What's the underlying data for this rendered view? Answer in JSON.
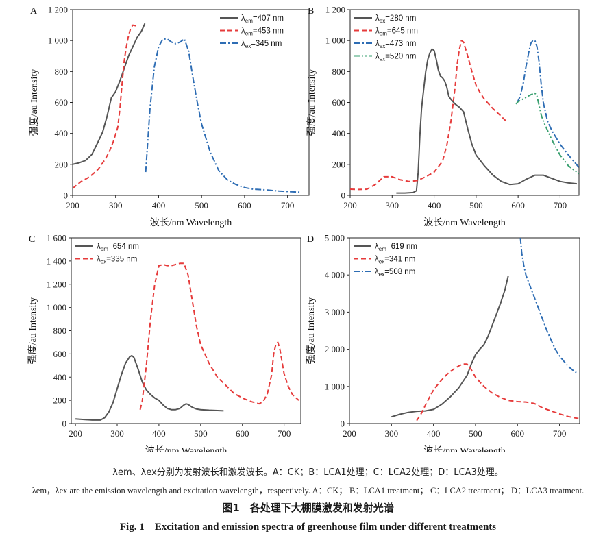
{
  "figure": {
    "title_zh": "图1　各处理下大棚膜激发和发射光谱",
    "title_en": "Fig. 1　Excitation and emission spectra of greenhouse film under different treatments",
    "note_zh": "λem、λex分别为发射波长和激发波长。A：CK；B：LCA1处理；C：LCA2处理；D：LCA3处理。",
    "note_en": "λem，λex are the emission wavelength and excitation wavelength，respectively. A：CK； B：LCA1 treatment； C：LCA2 treatment； D：LCA3 treatment."
  },
  "colors": {
    "gray": "#555555",
    "red": "#e63b3b",
    "blue": "#2e6db4",
    "green": "#3aa070"
  },
  "chart_data": [
    {
      "panel": "A",
      "type": "line",
      "xlabel": "波长/nm Wavelength",
      "ylabel": "强度/au Intensity",
      "xlim": [
        200,
        750
      ],
      "ylim": [
        0,
        1200
      ],
      "xticks": [
        200,
        300,
        400,
        500,
        600,
        700
      ],
      "yticks": [
        0,
        200,
        400,
        600,
        800,
        1000,
        1200
      ],
      "ytick_labels": [
        "0",
        "200",
        "400",
        "600",
        "800",
        "1 000",
        "1 200"
      ],
      "legend_position": "top-right",
      "series": [
        {
          "name": "λem=407 nm",
          "sub": "em",
          "val": "=407 nm",
          "color": "gray",
          "style": "solid",
          "x": [
            200,
            215,
            230,
            245,
            260,
            270,
            280,
            290,
            300,
            310,
            320,
            330,
            340,
            350,
            360,
            368
          ],
          "y": [
            200,
            210,
            225,
            265,
            350,
            410,
            510,
            630,
            670,
            740,
            820,
            900,
            960,
            1020,
            1060,
            1110
          ]
        },
        {
          "name": "λem=453 nm",
          "sub": "em",
          "val": "=453 nm",
          "color": "red",
          "style": "dash",
          "x": [
            200,
            220,
            240,
            260,
            275,
            285,
            295,
            305,
            310,
            315,
            320,
            325,
            330,
            335,
            340,
            348
          ],
          "y": [
            45,
            90,
            120,
            170,
            230,
            280,
            350,
            440,
            560,
            720,
            870,
            960,
            1030,
            1080,
            1100,
            1095
          ]
        },
        {
          "name": "λex=345 nm",
          "sub": "ex",
          "val": "=345 nm",
          "color": "blue",
          "style": "dashdot",
          "x": [
            370,
            380,
            390,
            400,
            410,
            420,
            430,
            440,
            450,
            460,
            470,
            480,
            490,
            500,
            520,
            540,
            560,
            580,
            600,
            620,
            650,
            680,
            700,
            730
          ],
          "y": [
            150,
            560,
            830,
            960,
            1010,
            1010,
            990,
            980,
            990,
            1010,
            930,
            760,
            600,
            460,
            280,
            160,
            100,
            70,
            50,
            40,
            35,
            28,
            25,
            20
          ]
        }
      ]
    },
    {
      "panel": "B",
      "type": "line",
      "xlabel": "波长/nm Wavelength",
      "ylabel": "强度/au Intensity",
      "xlim": [
        200,
        745
      ],
      "ylim": [
        0,
        1200
      ],
      "xticks": [
        200,
        300,
        400,
        500,
        600,
        700
      ],
      "yticks": [
        0,
        200,
        400,
        600,
        800,
        1000,
        1200
      ],
      "ytick_labels": [
        "0",
        "200",
        "400",
        "600",
        "800",
        "1 000",
        "1 200"
      ],
      "legend_position": "top-left",
      "series": [
        {
          "name": "λex=280 nm",
          "sub": "ex",
          "val": "=280 nm",
          "color": "gray",
          "style": "solid",
          "x": [
            310,
            330,
            350,
            358,
            362,
            366,
            370,
            375,
            380,
            385,
            390,
            395,
            400,
            405,
            410,
            415,
            420,
            425,
            430,
            435,
            440,
            450,
            460,
            470,
            480,
            490,
            500,
            520,
            540,
            560,
            580,
            600,
            620,
            640,
            660,
            680,
            700,
            720,
            740
          ],
          "y": [
            15,
            15,
            18,
            30,
            150,
            380,
            560,
            680,
            800,
            880,
            920,
            945,
            935,
            880,
            810,
            770,
            760,
            740,
            700,
            640,
            620,
            590,
            570,
            540,
            430,
            330,
            260,
            190,
            130,
            90,
            70,
            75,
            105,
            130,
            130,
            110,
            90,
            80,
            75
          ]
        },
        {
          "name": "λem=645 nm",
          "sub": "em",
          "val": "=645 nm",
          "color": "red",
          "style": "dash",
          "x": [
            200,
            220,
            240,
            260,
            280,
            300,
            320,
            340,
            360,
            380,
            400,
            420,
            430,
            440,
            450,
            455,
            460,
            465,
            470,
            480,
            490,
            500,
            510,
            520,
            540,
            560,
            575
          ],
          "y": [
            40,
            38,
            40,
            70,
            120,
            120,
            100,
            90,
            95,
            120,
            150,
            220,
            320,
            480,
            700,
            850,
            940,
            1000,
            990,
            900,
            800,
            710,
            660,
            620,
            560,
            510,
            470
          ]
        },
        {
          "name": "λex=473 nm",
          "sub": "ex",
          "val": "=473 nm",
          "color": "blue",
          "style": "dashdot",
          "x": [
            598,
            605,
            612,
            618,
            625,
            630,
            635,
            640,
            645,
            650,
            655,
            660,
            670,
            680,
            700,
            720,
            745
          ],
          "y": [
            600,
            640,
            720,
            820,
            920,
            980,
            1000,
            1000,
            960,
            860,
            720,
            600,
            480,
            420,
            330,
            260,
            180
          ]
        },
        {
          "name": "λex=520 nm",
          "sub": "ex",
          "val": "=520 nm",
          "color": "green",
          "style": "dashdotdot",
          "x": [
            595,
            600,
            610,
            620,
            630,
            640,
            645,
            650,
            655,
            660,
            670,
            680,
            700,
            720,
            745
          ],
          "y": [
            590,
            605,
            620,
            635,
            650,
            660,
            640,
            580,
            520,
            480,
            420,
            360,
            260,
            190,
            140
          ]
        }
      ]
    },
    {
      "panel": "C",
      "type": "line",
      "xlabel": "波长/nm Wavelength",
      "ylabel": "强度/au Intensity",
      "xlim": [
        190,
        740
      ],
      "ylim": [
        0,
        1600
      ],
      "xticks": [
        200,
        300,
        400,
        500,
        600,
        700
      ],
      "yticks": [
        0,
        200,
        400,
        600,
        800,
        1000,
        1200,
        1400,
        1600
      ],
      "ytick_labels": [
        "0",
        "200",
        "400",
        "600",
        "800",
        "1 000",
        "1 200",
        "1 400",
        "1 600"
      ],
      "legend_position": "top-left",
      "series": [
        {
          "name": "λem=654 nm",
          "sub": "em",
          "val": "=654 nm",
          "color": "gray",
          "style": "solid",
          "x": [
            200,
            220,
            240,
            260,
            270,
            280,
            290,
            300,
            310,
            320,
            330,
            335,
            340,
            350,
            360,
            370,
            380,
            390,
            400,
            410,
            420,
            430,
            440,
            450,
            460,
            465,
            470,
            480,
            490,
            500,
            520,
            540,
            555
          ],
          "y": [
            40,
            35,
            30,
            30,
            50,
            100,
            180,
            300,
            420,
            520,
            575,
            585,
            570,
            470,
            360,
            290,
            250,
            220,
            200,
            160,
            130,
            120,
            120,
            130,
            160,
            170,
            165,
            140,
            125,
            120,
            115,
            112,
            110
          ]
        },
        {
          "name": "λex=335 nm",
          "sub": "ex",
          "val": "=335 nm",
          "color": "red",
          "style": "dash",
          "x": [
            355,
            360,
            370,
            380,
            390,
            400,
            410,
            420,
            430,
            440,
            450,
            460,
            470,
            480,
            490,
            500,
            520,
            540,
            560,
            580,
            600,
            620,
            640,
            650,
            660,
            670,
            675,
            680,
            685,
            690,
            700,
            710,
            720,
            735
          ],
          "y": [
            120,
            190,
            500,
            900,
            1200,
            1360,
            1370,
            1360,
            1360,
            1370,
            1380,
            1380,
            1280,
            1060,
            840,
            680,
            520,
            400,
            330,
            260,
            220,
            190,
            170,
            190,
            260,
            420,
            600,
            680,
            700,
            640,
            430,
            320,
            250,
            200
          ]
        }
      ]
    },
    {
      "panel": "D",
      "type": "line",
      "xlabel": "波长/nm Wavelength",
      "ylabel": "强度/au Intensity",
      "xlim": [
        200,
        748
      ],
      "ylim": [
        0,
        5000
      ],
      "xticks": [
        200,
        300,
        400,
        500,
        600,
        700
      ],
      "yticks": [
        0,
        1000,
        2000,
        3000,
        4000,
        5000
      ],
      "ytick_labels": [
        "0",
        "1 000",
        "2 000",
        "3 000",
        "4 000",
        "5 000"
      ],
      "legend_position": "top-left",
      "series": [
        {
          "name": "λem=619 nm",
          "sub": "em",
          "val": "=619 nm",
          "color": "gray",
          "style": "solid",
          "x": [
            300,
            320,
            340,
            360,
            380,
            400,
            420,
            440,
            460,
            480,
            490,
            500,
            510,
            520,
            530,
            540,
            550,
            560,
            570,
            578
          ],
          "y": [
            180,
            250,
            300,
            330,
            340,
            380,
            520,
            720,
            960,
            1300,
            1600,
            1850,
            2000,
            2120,
            2350,
            2650,
            2950,
            3250,
            3600,
            3980
          ]
        },
        {
          "name": "λex=341 nm",
          "sub": "ex",
          "val": "=341 nm",
          "color": "red",
          "style": "dash",
          "x": [
            360,
            370,
            380,
            390,
            400,
            410,
            420,
            430,
            440,
            450,
            460,
            470,
            480,
            490,
            500,
            520,
            540,
            560,
            580,
            600,
            620,
            640,
            660,
            680,
            700,
            720,
            748
          ],
          "y": [
            80,
            250,
            480,
            700,
            900,
            1050,
            1180,
            1300,
            1400,
            1480,
            1550,
            1600,
            1600,
            1450,
            1250,
            1000,
            820,
            700,
            620,
            590,
            580,
            540,
            420,
            340,
            260,
            190,
            130
          ]
        },
        {
          "name": "λex=508 nm",
          "sub": "ex",
          "val": "=508 nm",
          "color": "blue",
          "style": "dashdot",
          "x": [
            607,
            610,
            615,
            620,
            630,
            640,
            650,
            660,
            670,
            680,
            690,
            700,
            710,
            720,
            730,
            740
          ],
          "y": [
            5000,
            4600,
            4250,
            4000,
            3700,
            3400,
            3100,
            2800,
            2500,
            2250,
            2000,
            1820,
            1680,
            1550,
            1450,
            1370
          ]
        }
      ]
    }
  ]
}
